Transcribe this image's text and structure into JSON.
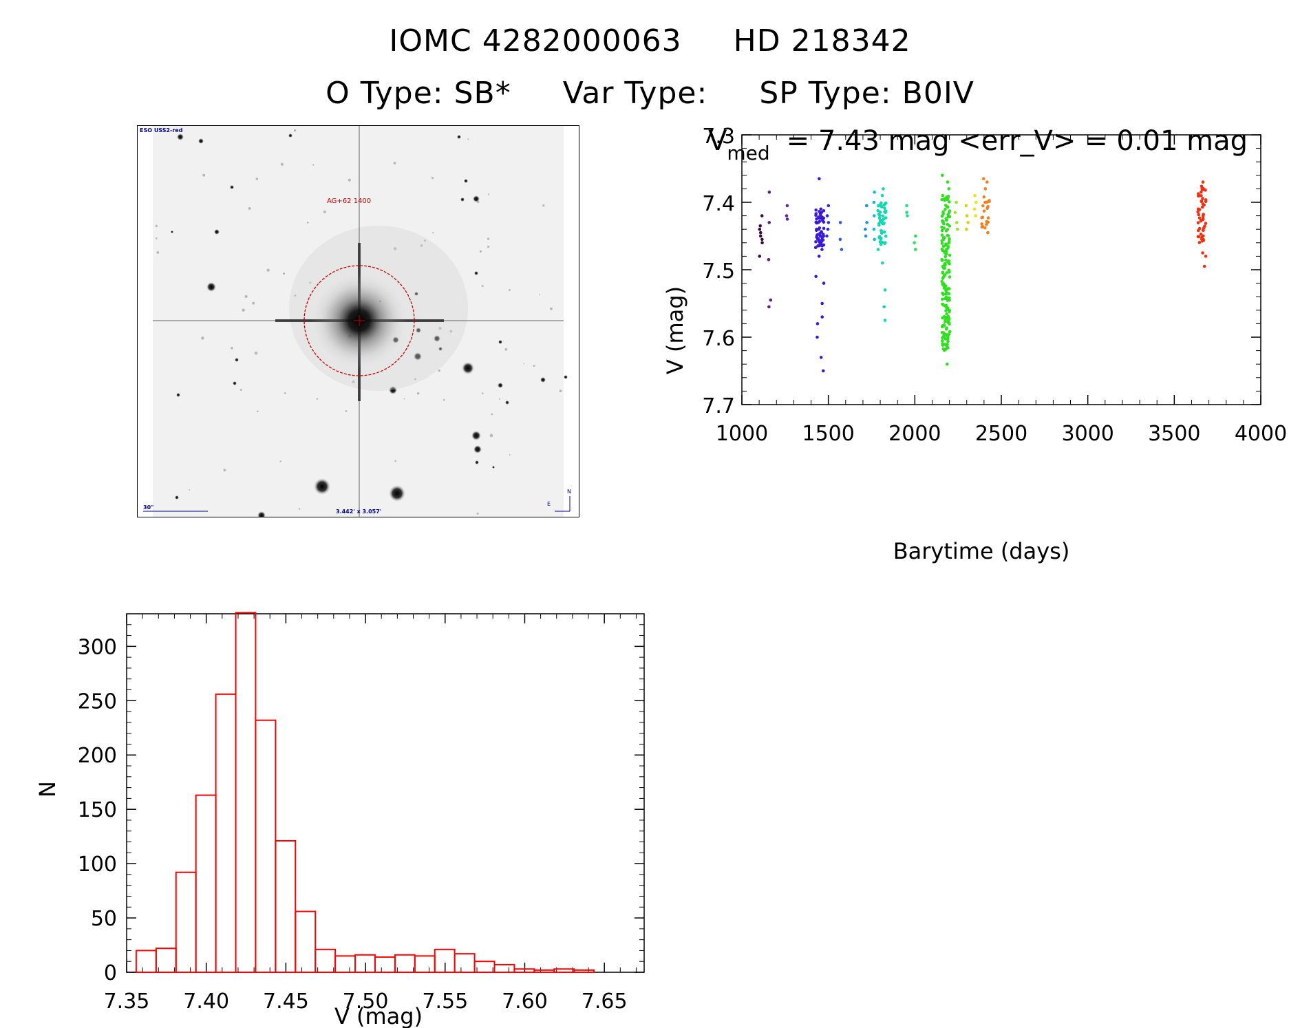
{
  "header": {
    "id_label": "IOMC 4282000063",
    "hd_label": "HD 218342",
    "otype": "O Type: SB*",
    "vartype": "Var Type:",
    "sptype": "SP Type: B0IV"
  },
  "finder": {
    "survey": "ESO USS2-red",
    "target_label": "AG+62 1400",
    "scale_label": "30\"",
    "fov_label": "3.442' x 3.057'",
    "north": "N",
    "east": "E"
  },
  "colors": {
    "finder_red": "#cc0000",
    "finder_blue": "#00008b",
    "hist": "#ff0000"
  },
  "chart_data": [
    {
      "type": "scatter",
      "title": "V_med = 7.43 mag <err_V> = 0.01 mag",
      "title_parts": {
        "v": "V",
        "sub": "med",
        "rest": "= 7.43 mag <err_V> = 0.01 mag"
      },
      "xlabel": "Barytime (days)",
      "ylabel": "V (mag)",
      "xlim": [
        1000,
        4000
      ],
      "ylim": [
        7.3,
        7.7
      ],
      "y_inverted": true,
      "xticks": [
        1000,
        1500,
        2000,
        2500,
        3000,
        3500,
        4000
      ],
      "yticks": [
        7.3,
        7.4,
        7.5,
        7.6,
        7.7
      ],
      "groups": [
        {
          "x": 1110,
          "color": "#3a0a3a",
          "y": [
            7.42,
            7.435,
            7.44,
            7.445,
            7.45,
            7.455,
            7.46,
            7.48
          ]
        },
        {
          "x": 1160,
          "color": "#5a1a8a",
          "y": [
            7.385,
            7.43,
            7.485,
            7.545,
            7.555
          ]
        },
        {
          "x": 1255,
          "color": "#5a2aa8",
          "y": [
            7.405,
            7.42,
            7.425
          ]
        },
        {
          "x": 1450,
          "color": "#3a1ad8",
          "y": [
            7.365,
            7.41,
            7.42,
            7.43,
            7.44,
            7.45,
            7.46,
            7.47,
            7.48,
            7.51,
            7.52,
            7.55,
            7.57,
            7.58,
            7.6,
            7.63,
            7.65
          ],
          "range": [
            7.41,
            7.47
          ],
          "n": 55
        },
        {
          "x": 1495,
          "color": "#2a30e0",
          "y": [
            7.405,
            7.42,
            7.43,
            7.44,
            7.45
          ]
        },
        {
          "x": 1575,
          "color": "#2a60e8",
          "y": [
            7.43,
            7.455,
            7.47
          ]
        },
        {
          "x": 1720,
          "color": "#1a90e8",
          "y": [
            7.405,
            7.43,
            7.44,
            7.45
          ]
        },
        {
          "x": 1770,
          "color": "#10b8e0",
          "y": [
            7.385,
            7.4,
            7.42,
            7.44,
            7.455
          ]
        },
        {
          "x": 1810,
          "color": "#10d8b0",
          "y": [
            7.38,
            7.39,
            7.47,
            7.49,
            7.53,
            7.555,
            7.575
          ],
          "range": [
            7.4,
            7.465
          ],
          "n": 45
        },
        {
          "x": 1950,
          "color": "#20e080",
          "y": [
            7.405,
            7.415,
            7.42
          ]
        },
        {
          "x": 2000,
          "color": "#30e050",
          "y": [
            7.45,
            7.46,
            7.47
          ]
        },
        {
          "x": 2180,
          "color": "#30e020",
          "y": [
            7.36,
            7.37,
            7.38,
            7.39,
            7.64
          ],
          "range": [
            7.39,
            7.62
          ],
          "n": 170
        },
        {
          "x": 2240,
          "color": "#a0e020",
          "y": [
            7.4,
            7.415,
            7.43,
            7.44
          ]
        },
        {
          "x": 2300,
          "color": "#d8d010",
          "y": [
            7.405,
            7.42,
            7.43,
            7.44
          ]
        },
        {
          "x": 2350,
          "color": "#f0e010",
          "y": [
            7.39,
            7.4,
            7.41,
            7.42
          ]
        },
        {
          "x": 2410,
          "color": "#f08020",
          "y": [
            7.365,
            7.37,
            7.38,
            7.445
          ],
          "range": [
            7.39,
            7.44
          ],
          "n": 20
        },
        {
          "x": 3660,
          "color": "#f03010",
          "y": [
            7.37,
            7.475,
            7.48,
            7.495
          ],
          "range": [
            7.375,
            7.46
          ],
          "n": 50
        }
      ]
    },
    {
      "type": "bar",
      "subtype": "histogram",
      "xlabel": "V (mag)",
      "ylabel": "N",
      "xlim": [
        7.35,
        7.675
      ],
      "ylim": [
        0,
        330
      ],
      "xticks": [
        7.35,
        7.4,
        7.45,
        7.5,
        7.55,
        7.6,
        7.65
      ],
      "yticks": [
        0,
        50,
        100,
        150,
        200,
        250,
        300
      ],
      "bin_width": 0.0125,
      "bin_start": 7.356,
      "values": [
        20,
        22,
        92,
        163,
        256,
        331,
        232,
        121,
        56,
        21,
        15,
        16,
        14,
        16,
        15,
        21,
        17,
        10,
        7,
        3,
        2,
        3,
        2
      ]
    }
  ]
}
